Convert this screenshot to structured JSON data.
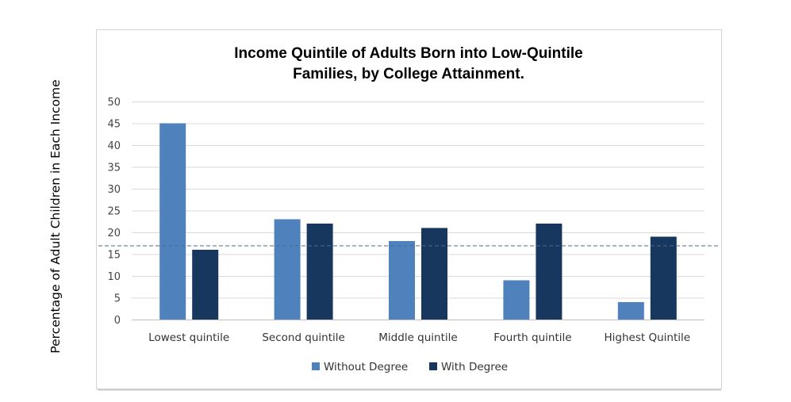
{
  "chart_data": {
    "type": "bar",
    "title_lines": [
      "Income Quintile of Adults Born into Low-Quintile",
      "Families, by College Attainment."
    ],
    "ylabel": "Percentage of Adult Children in Each Income",
    "xlabel": "",
    "categories": [
      "Lowest quintile",
      "Second quintile",
      "Middle quintile",
      "Fourth quintile",
      "Highest Quintile"
    ],
    "series": [
      {
        "name": "Without Degree",
        "color": "#4f81bd",
        "values": [
          45,
          23,
          18,
          9,
          4
        ]
      },
      {
        "name": "With Degree",
        "color": "#17375e",
        "values": [
          16,
          22,
          21,
          22,
          19
        ]
      }
    ],
    "ylim": [
      0,
      50
    ],
    "yticks": [
      0,
      5,
      10,
      15,
      20,
      25,
      30,
      35,
      40,
      45,
      50
    ],
    "reference_line": {
      "value": 17,
      "style": "dashed",
      "color": "#4a6b8f"
    },
    "grid": true,
    "legend_position": "bottom"
  }
}
